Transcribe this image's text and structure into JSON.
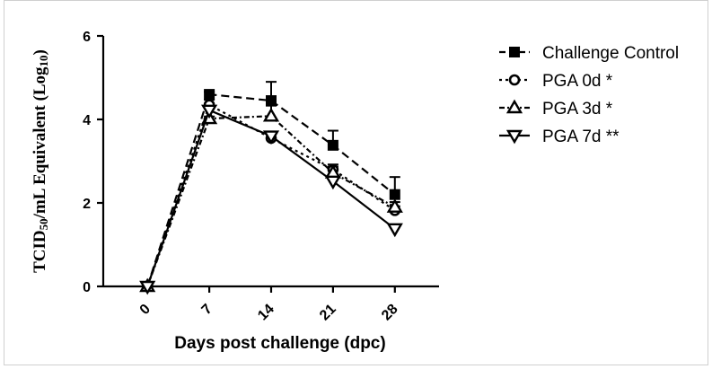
{
  "chart_data": {
    "type": "line",
    "title": "",
    "xlabel": "Days post challenge (dpc)",
    "ylabel": {
      "main": "TCID",
      "sub": "50",
      "mid": "/mL Equivalent (Log",
      "sub2": "10",
      "end": ")"
    },
    "categories": [
      "0",
      "7",
      "14",
      "21",
      "28"
    ],
    "x": [
      0,
      7,
      14,
      21,
      28
    ],
    "ylim": [
      0,
      6
    ],
    "yticks": [
      "0",
      "2",
      "4",
      "6"
    ],
    "legend_position": "right",
    "series": [
      {
        "name": "Challenge Control",
        "marker": "square-filled",
        "dash": "9,5",
        "values": [
          0,
          4.6,
          4.45,
          3.38,
          2.2
        ],
        "err": [
          0,
          0.06,
          0.45,
          0.35,
          0.42
        ]
      },
      {
        "name": "PGA 0d *",
        "marker": "circle-open",
        "dash": "3,4",
        "values": [
          0,
          4.35,
          3.55,
          2.8,
          1.82
        ],
        "err": [
          0,
          0.12,
          0.1,
          0.12,
          0.1
        ]
      },
      {
        "name": "PGA 3d *",
        "marker": "triangle-up-open",
        "dash": "6,3,2,3",
        "values": [
          0,
          4.02,
          4.08,
          2.72,
          1.9
        ],
        "err": [
          0,
          0.05,
          0.25,
          0.15,
          0.12
        ]
      },
      {
        "name": "PGA 7d **",
        "marker": "triangle-down-open",
        "dash": "",
        "values": [
          0,
          4.22,
          3.6,
          2.52,
          1.38
        ],
        "err": [
          0,
          0.05,
          0.05,
          0.08,
          0.05
        ]
      }
    ]
  }
}
